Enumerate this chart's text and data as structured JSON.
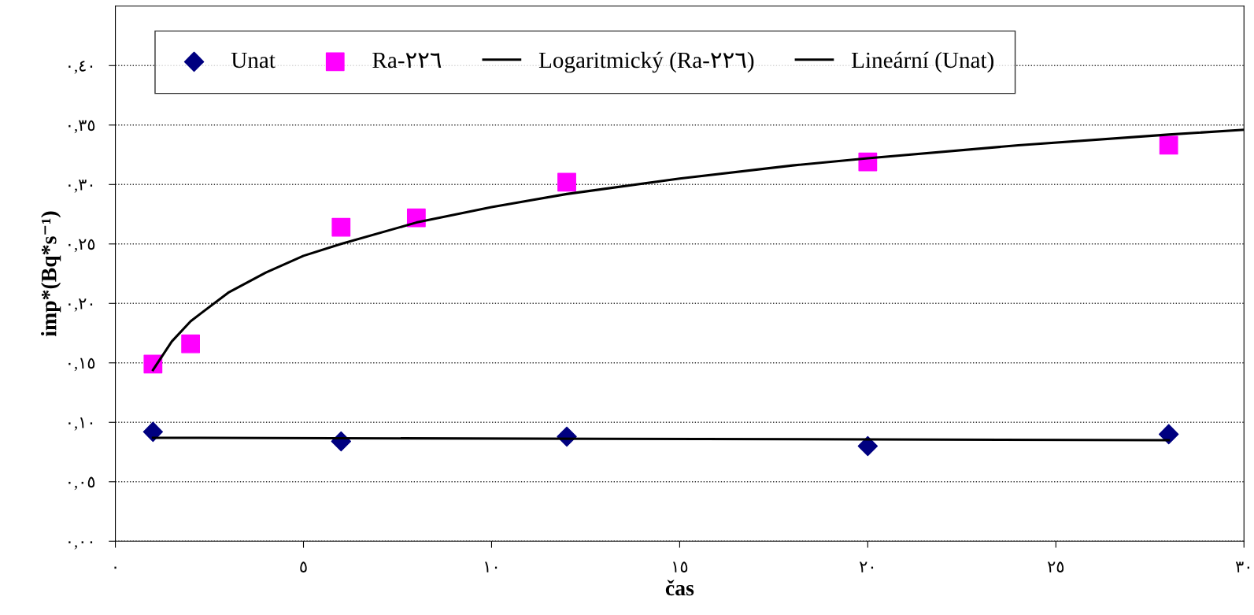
{
  "chart_data": {
    "type": "scatter",
    "xlabel": "čas",
    "ylabel": "imp*(Bq*s⁻¹)",
    "xlim": [
      0,
      30
    ],
    "ylim": [
      0,
      0.45
    ],
    "xticks": [
      {
        "value": 0,
        "label": "٠"
      },
      {
        "value": 5,
        "label": "٥"
      },
      {
        "value": 10,
        "label": "١٠"
      },
      {
        "value": 15,
        "label": "١٥"
      },
      {
        "value": 20,
        "label": "٢٠"
      },
      {
        "value": 25,
        "label": "٢٥"
      },
      {
        "value": 30,
        "label": "٣٠"
      }
    ],
    "yticks": [
      {
        "value": 0,
        "label": "٠,٠٠"
      },
      {
        "value": 0.05,
        "label": "٠,٠٥"
      },
      {
        "value": 0.1,
        "label": "٠,١٠"
      },
      {
        "value": 0.15,
        "label": "٠,١٥"
      },
      {
        "value": 0.2,
        "label": "٠,٢٠"
      },
      {
        "value": 0.25,
        "label": "٠,٢٥"
      },
      {
        "value": 0.3,
        "label": "٠,٣٠"
      },
      {
        "value": 0.35,
        "label": "٠,٣٥"
      },
      {
        "value": 0.4,
        "label": "٠,٤٠"
      }
    ],
    "grid": "y",
    "legend": "top left",
    "series": [
      {
        "name": "Unat",
        "marker": "diamond",
        "color": "#000080",
        "x": [
          1,
          6,
          12,
          20,
          28
        ],
        "values": [
          0.092,
          0.084,
          0.088,
          0.08,
          0.09
        ]
      },
      {
        "name": "Ra-٢٢٦",
        "marker": "square",
        "color": "#ff00ff",
        "x": [
          1,
          2,
          6,
          8,
          12,
          20,
          28
        ],
        "values": [
          0.149,
          0.166,
          0.264,
          0.272,
          0.302,
          0.319,
          0.333
        ]
      },
      {
        "name": "Logaritmický (Ra-٢٢٦)",
        "type": "line",
        "marker": "none",
        "color": "#000000",
        "x": [
          1,
          1.5,
          2,
          3,
          4,
          5,
          6,
          8,
          10,
          12,
          15,
          18,
          20,
          24,
          28,
          30
        ],
        "values": [
          0.144,
          0.168,
          0.185,
          0.209,
          0.226,
          0.24,
          0.25,
          0.268,
          0.281,
          0.292,
          0.305,
          0.316,
          0.322,
          0.333,
          0.342,
          0.346
        ]
      },
      {
        "name": "Lineární (Unat)",
        "type": "line",
        "marker": "none",
        "color": "#000000",
        "x": [
          1,
          28
        ],
        "values": [
          0.087,
          0.085
        ]
      }
    ]
  }
}
